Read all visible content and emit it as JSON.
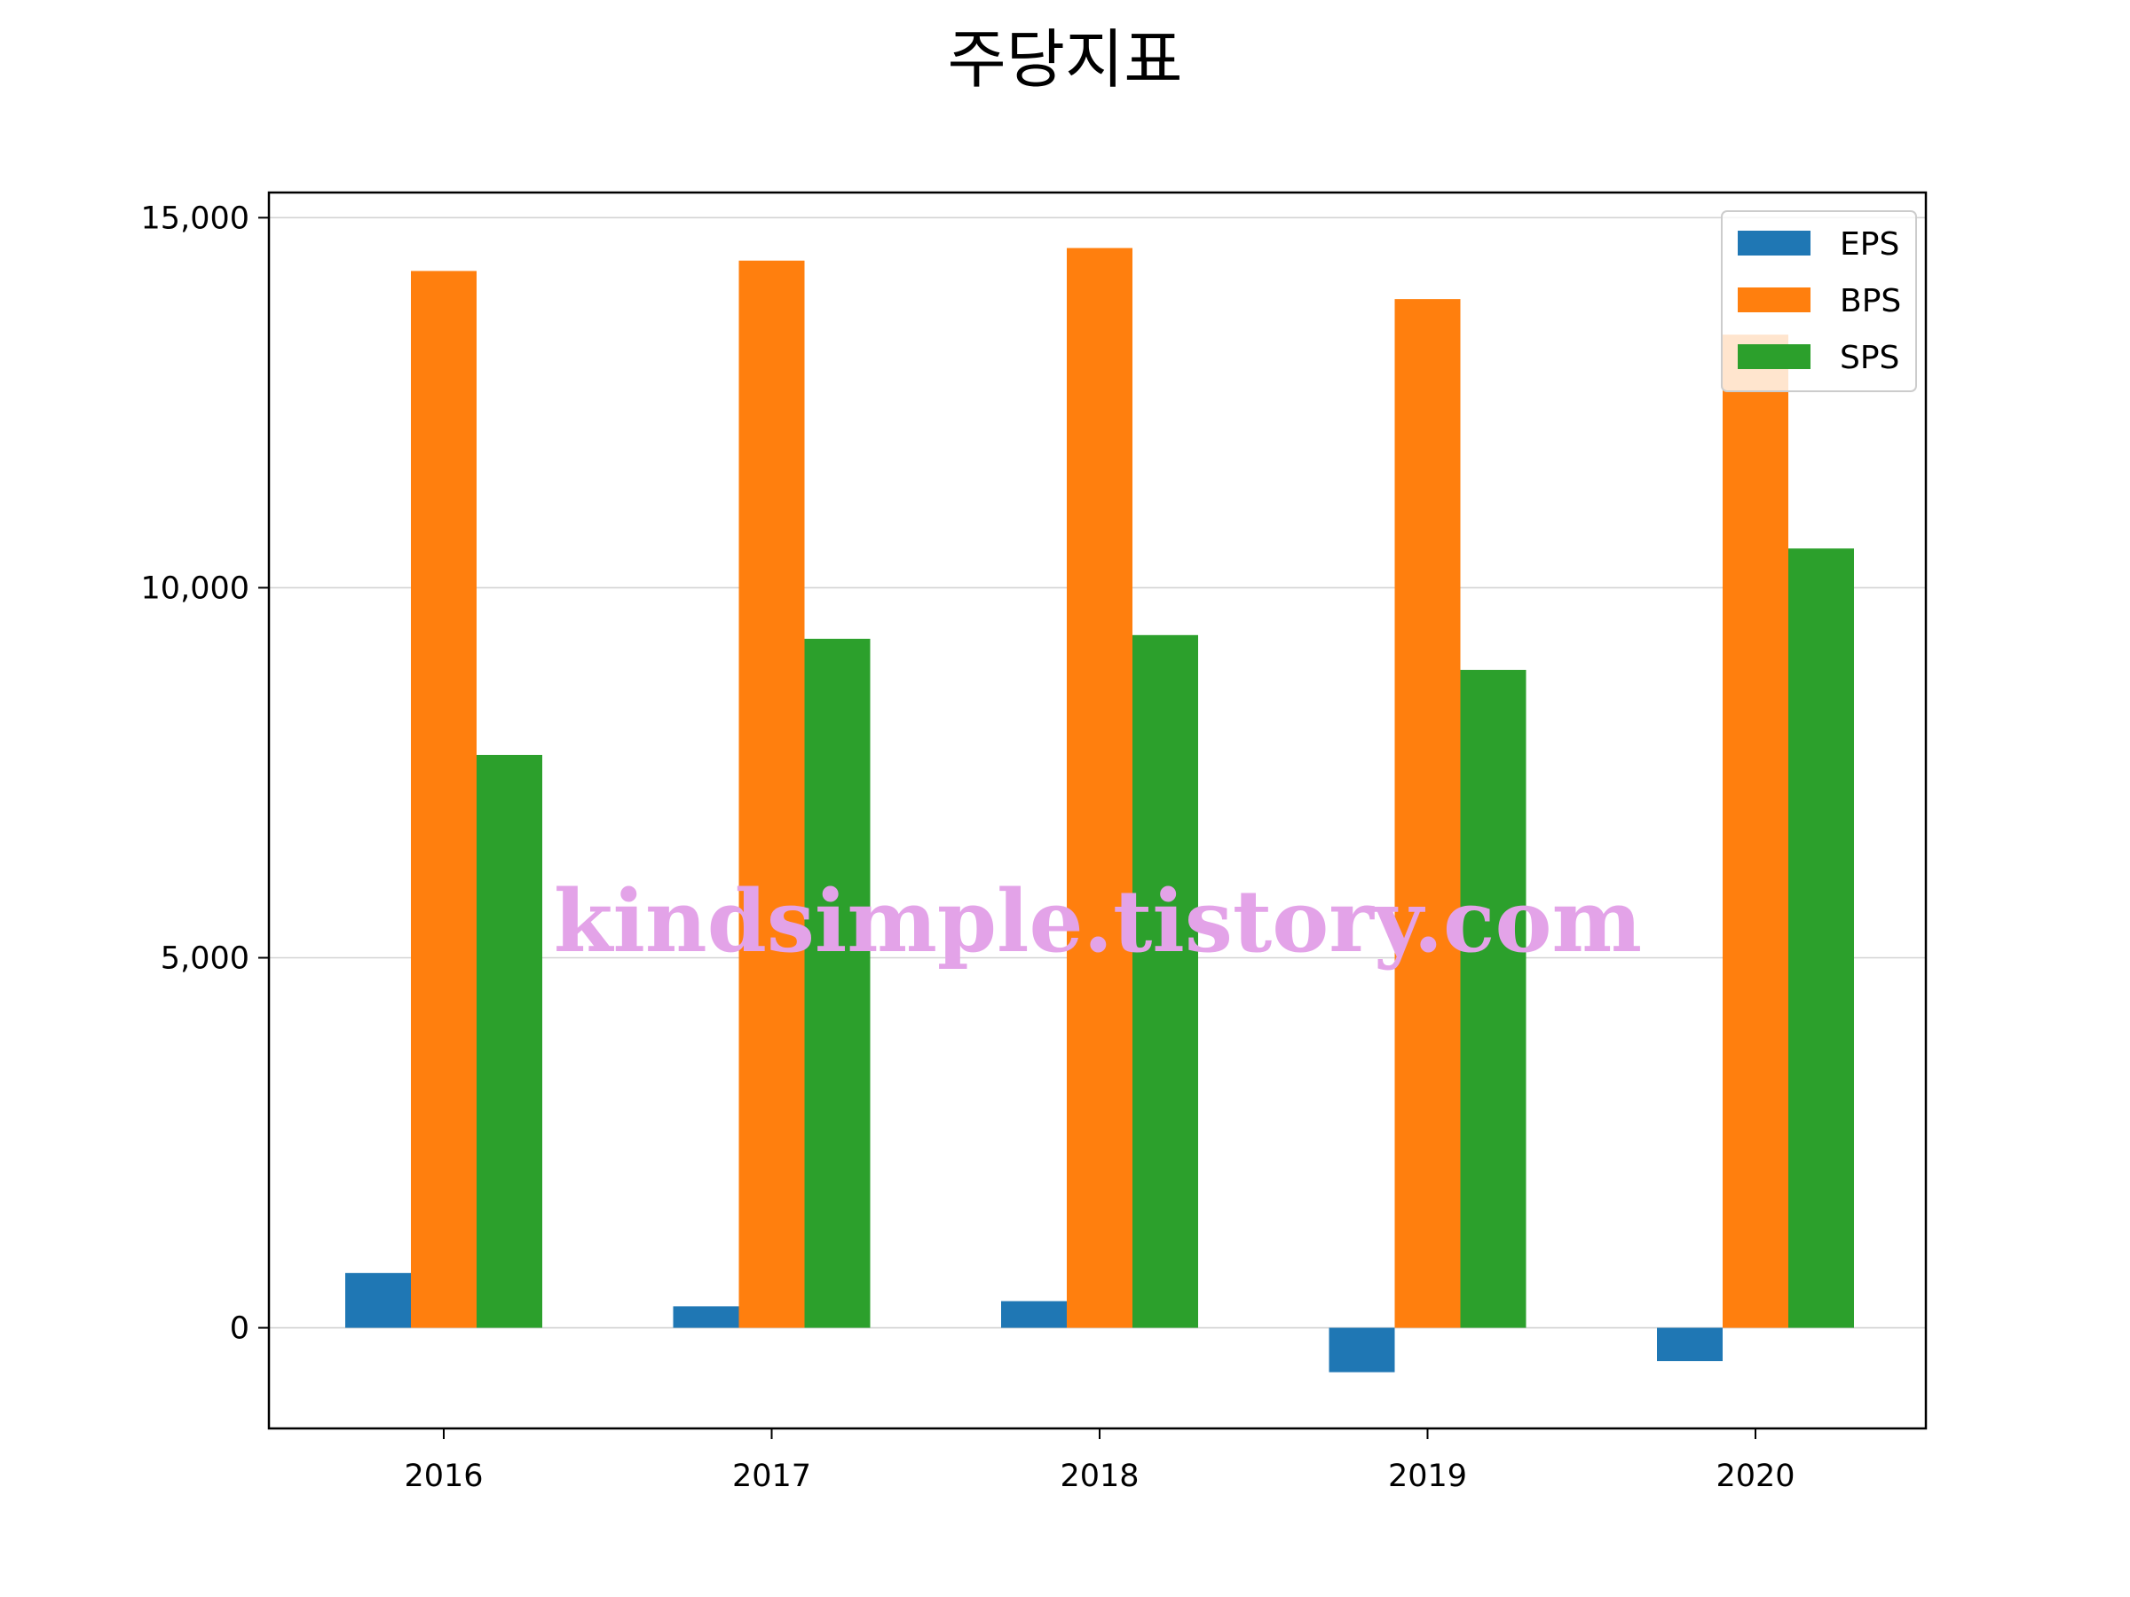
{
  "chart_data": {
    "type": "bar",
    "title": "주당지표",
    "xlabel": "",
    "ylabel": "",
    "categories": [
      "2016",
      "2017",
      "2018",
      "2019",
      "2020"
    ],
    "series": [
      {
        "name": "EPS",
        "color": "#1f77b4",
        "values": [
          740,
          290,
          360,
          -600,
          -450
        ]
      },
      {
        "name": "BPS",
        "color": "#ff7f0e",
        "values": [
          14280,
          14420,
          14590,
          13900,
          13420
        ]
      },
      {
        "name": "SPS",
        "color": "#2ca02c",
        "values": [
          7740,
          9310,
          9360,
          8890,
          10530
        ]
      }
    ],
    "ylim": [
      -1360,
      15340
    ],
    "yticks": [
      0,
      5000,
      10000,
      15000
    ],
    "ytick_labels": [
      "0",
      "5,000",
      "10,000",
      "15,000"
    ],
    "grid": "y",
    "legend_position": "top-right"
  },
  "watermark": {
    "text": "kindsimple.tistory.com",
    "color": "#e3a3e8"
  }
}
